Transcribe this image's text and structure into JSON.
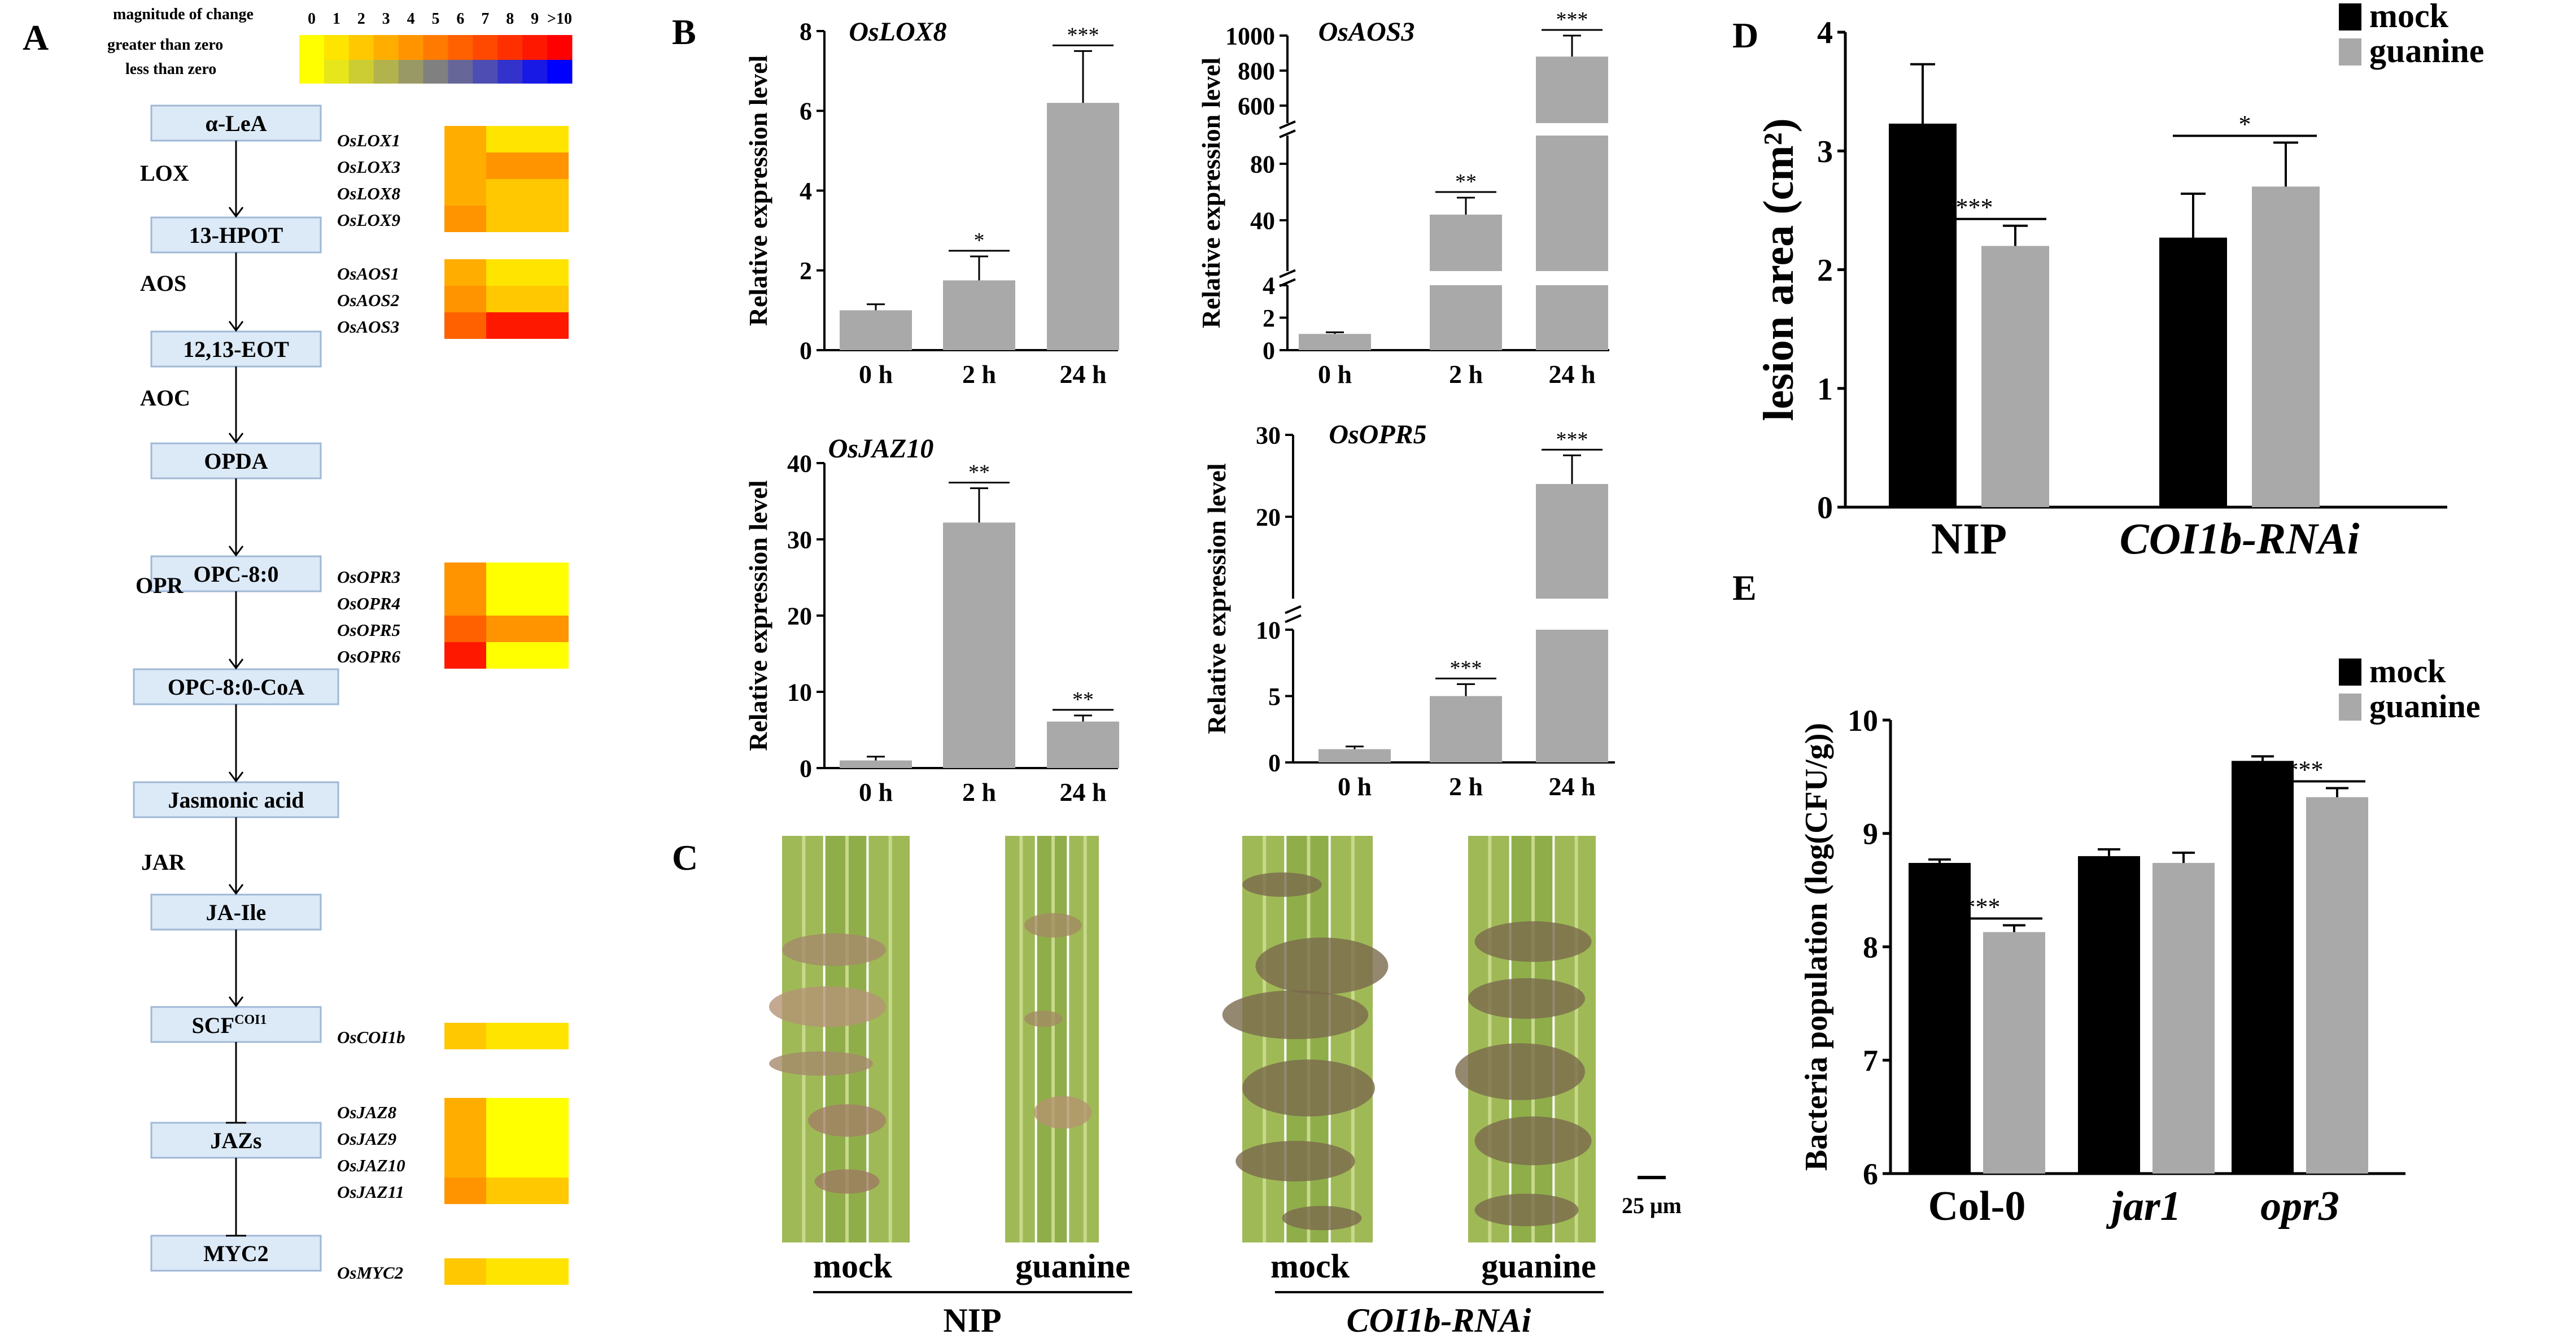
{
  "panels": [
    "A",
    "B",
    "C",
    "D",
    "E"
  ],
  "colors": {
    "bar_mock": "#000000",
    "bar_guanine": "#a9a9a9",
    "bar_gray": "#a9a9a9",
    "box_fill": "#dce9f7",
    "box_stroke": "#9fb8d6"
  },
  "panel_a": {
    "legend": {
      "title": "magnitude of change",
      "ticks": [
        "0",
        "1",
        "2",
        "3",
        "4",
        "5",
        "6",
        "7",
        "8",
        "9",
        ">10"
      ],
      "row1": "greater than zero",
      "row2": "less than zero"
    },
    "pathway": [
      "α-LeA",
      "13-HPOT",
      "12,13-EOT",
      "OPDA",
      "OPC-8:0",
      "OPC-8:0-CoA",
      "Jasmonic acid",
      "JA-Ile",
      "SCF",
      "JAZs",
      "MYC2"
    ],
    "scf_superscript": "COI1",
    "enzymes": [
      "LOX",
      "AOS",
      "AOC",
      "OPR",
      "JAR"
    ],
    "heatmap_groups": [
      {
        "genes": [
          "OsLOX1",
          "OsLOX3",
          "OsLOX8",
          "OsLOX9"
        ],
        "values": [
          [
            3,
            1
          ],
          [
            3,
            4
          ],
          [
            3,
            2
          ],
          [
            4,
            2
          ]
        ]
      },
      {
        "genes": [
          "OsAOS1",
          "OsAOS2",
          "OsAOS3"
        ],
        "values": [
          [
            3,
            1
          ],
          [
            4,
            2
          ],
          [
            6,
            9
          ]
        ]
      },
      {
        "genes": [
          "OsOPR3",
          "OsOPR4",
          "OsOPR5",
          "OsOPR6"
        ],
        "values": [
          [
            4,
            0
          ],
          [
            4,
            0
          ],
          [
            6,
            4
          ],
          [
            9,
            0
          ]
        ]
      },
      {
        "genes": [
          "OsCOI1b"
        ],
        "values": [
          [
            2,
            1
          ]
        ]
      },
      {
        "genes": [
          "OsJAZ8",
          "OsJAZ9",
          "OsJAZ10",
          "OsJAZ11"
        ],
        "values": [
          [
            3,
            0
          ],
          [
            3,
            0
          ],
          [
            3,
            0
          ],
          [
            4,
            2
          ]
        ]
      },
      {
        "genes": [
          "OsMYC2"
        ],
        "values": [
          [
            2,
            1
          ]
        ]
      }
    ],
    "scale_colors": [
      "#ffff00",
      "#ffe400",
      "#ffc800",
      "#ffae00",
      "#ff9400",
      "#ff7a00",
      "#ff6000",
      "#ff4800",
      "#ff3000",
      "#ff1800",
      "#ff0000"
    ]
  },
  "panel_c": {
    "labels": [
      "mock",
      "guanine",
      "mock",
      "guanine"
    ],
    "groups": [
      "NIP",
      "COI1b-RNAi"
    ],
    "scale_bar": "25 μm"
  },
  "chart_data": [
    {
      "panel": "B",
      "type": "bar",
      "title": "OsLOX8",
      "ylabel": "Relative expression level",
      "categories": [
        "0 h",
        "2 h",
        "24 h"
      ],
      "values": [
        1.0,
        1.75,
        6.2
      ],
      "errors": [
        0.15,
        0.6,
        1.3
      ],
      "significance": [
        "",
        "*",
        "***"
      ],
      "ylim": [
        0,
        8
      ],
      "yticks": [
        "0",
        "2",
        "4",
        "6",
        "8"
      ]
    },
    {
      "panel": "B",
      "type": "bar",
      "title": "OsAOS3",
      "ylabel": "Relative expression level",
      "categories": [
        "0 h",
        "2 h",
        "24 h"
      ],
      "values": [
        1.0,
        44,
        880
      ],
      "errors": [
        0.1,
        12,
        120
      ],
      "significance": [
        "",
        "**",
        "***"
      ],
      "broken_axis": true,
      "yticks": [
        "0",
        "2",
        "4",
        "40",
        "80",
        "600",
        "800",
        "1000"
      ]
    },
    {
      "panel": "B",
      "type": "bar",
      "title": "OsJAZ10",
      "ylabel": "Relative expression level",
      "categories": [
        "0 h",
        "2 h",
        "24 h"
      ],
      "values": [
        1.0,
        32.2,
        6.1
      ],
      "errors": [
        0.5,
        4.5,
        0.8
      ],
      "significance": [
        "",
        "**",
        "**"
      ],
      "ylim": [
        0,
        40
      ],
      "yticks": [
        "0",
        "10",
        "20",
        "30",
        "40"
      ]
    },
    {
      "panel": "B",
      "type": "bar",
      "title": "OsOPR5",
      "ylabel": "Relative expression level",
      "categories": [
        "0 h",
        "2 h",
        "24 h"
      ],
      "values": [
        1.0,
        5.0,
        24.0
      ],
      "errors": [
        0.2,
        0.9,
        3.5
      ],
      "significance": [
        "",
        "***",
        "***"
      ],
      "broken_axis": true,
      "yticks": [
        "0",
        "5",
        "10",
        "20",
        "30"
      ]
    },
    {
      "panel": "D",
      "type": "bar",
      "ylabel": "lesion area (cm²)",
      "categories": [
        "NIP",
        "COI1b-RNAi"
      ],
      "series": [
        {
          "name": "mock",
          "values": [
            3.23,
            2.27
          ],
          "errors": [
            0.5,
            0.37
          ]
        },
        {
          "name": "guanine",
          "values": [
            2.2,
            2.7
          ],
          "errors": [
            0.17,
            0.37
          ]
        }
      ],
      "significance": [
        "***",
        "*"
      ],
      "ylim": [
        0,
        4
      ],
      "yticks": [
        "0",
        "1",
        "2",
        "3",
        "4"
      ],
      "legend": "top-right"
    },
    {
      "panel": "E",
      "type": "bar",
      "ylabel": "Bacteria population (log(CFU/g))",
      "categories": [
        "Col-0",
        "jar1",
        "opr3"
      ],
      "series": [
        {
          "name": "mock",
          "values": [
            8.74,
            8.8,
            9.64
          ],
          "errors": [
            0.03,
            0.06,
            0.04
          ]
        },
        {
          "name": "guanine",
          "values": [
            8.13,
            8.74,
            9.32
          ],
          "errors": [
            0.06,
            0.09,
            0.08
          ]
        }
      ],
      "significance": [
        "***",
        "",
        "***"
      ],
      "ylim": [
        6,
        10
      ],
      "yticks": [
        "6",
        "7",
        "8",
        "9",
        "10"
      ],
      "legend": "top-right"
    }
  ]
}
